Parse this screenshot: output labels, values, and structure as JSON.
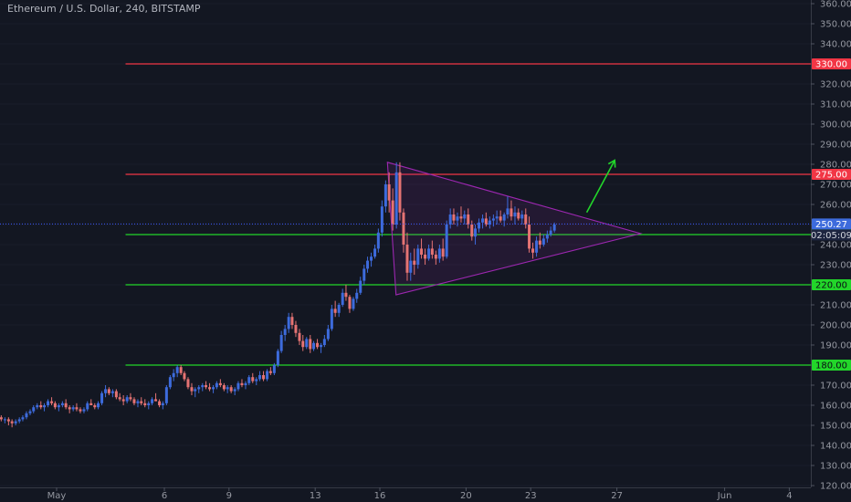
{
  "header": {
    "title": "Ethereum / U.S. Dollar, 240, BITSTAMP"
  },
  "colors": {
    "background": "#131722",
    "up": "#3d6bdc",
    "down": "#e57373",
    "resistance": "#f23645",
    "support": "#22d62a",
    "triangle": "#9c27b0",
    "arrow": "#22d62a",
    "price_line": "#3d5afe",
    "countdown_bg": "#1e2540"
  },
  "chart_data": {
    "type": "candlestick",
    "y_axis": {
      "min": 120,
      "max": 360,
      "ticks": [
        "120.00",
        "130.00",
        "140.00",
        "150.00",
        "160.00",
        "170.00",
        "180.00",
        "190.00",
        "200.00",
        "210.00",
        "220.00",
        "230.00",
        "240.00",
        "250.00",
        "260.00",
        "270.00",
        "280.00",
        "290.00",
        "300.00",
        "310.00",
        "320.00",
        "330.00",
        "340.00",
        "350.00",
        "360.00"
      ]
    },
    "x_axis": {
      "labels": [
        {
          "text": "May",
          "day": 1
        },
        {
          "text": "6",
          "day": 6
        },
        {
          "text": "9",
          "day": 9
        },
        {
          "text": "13",
          "day": 13
        },
        {
          "text": "16",
          "day": 16
        },
        {
          "text": "20",
          "day": 20
        },
        {
          "text": "23",
          "day": 23
        },
        {
          "text": "27",
          "day": 27
        },
        {
          "text": "Jun",
          "day": 32
        },
        {
          "text": "4",
          "day": 35
        }
      ]
    },
    "horizontal_levels": [
      {
        "price": 330,
        "label": "330.00",
        "kind": "resistance",
        "start_day": 4.2
      },
      {
        "price": 275,
        "label": "275.00",
        "kind": "resistance",
        "start_day": 4.2
      },
      {
        "price": 245,
        "label": "245.00",
        "kind": "support",
        "start_day": 4.2
      },
      {
        "price": 220,
        "label": "220.00",
        "kind": "support",
        "start_day": 4.2
      },
      {
        "price": 180,
        "label": "180.00",
        "kind": "support",
        "start_day": 4.2
      }
    ],
    "last_price": {
      "label": "250.27",
      "value": 250.27,
      "countdown": "02:05:09"
    },
    "triangle": [
      {
        "day": 16.35,
        "price": 281
      },
      {
        "day": 16.75,
        "price": 215
      },
      {
        "day": 28.1,
        "price": 245.5
      }
    ],
    "arrow": {
      "from": {
        "day": 25.6,
        "price": 256
      },
      "to": {
        "day": 26.9,
        "price": 282
      }
    },
    "candles": [
      [
        -1.9,
        154,
        155,
        153,
        155
      ],
      [
        -1.73,
        155,
        155,
        153,
        154
      ],
      [
        -1.57,
        154,
        155,
        152,
        153
      ],
      [
        -1.4,
        153,
        154,
        151,
        153
      ],
      [
        -1.23,
        153,
        154,
        150,
        152
      ],
      [
        -1.07,
        152,
        153,
        149,
        151
      ],
      [
        -0.9,
        151,
        153,
        150,
        152
      ],
      [
        -0.73,
        152,
        154,
        151,
        153
      ],
      [
        -0.57,
        153,
        155,
        152,
        154
      ],
      [
        -0.4,
        154,
        157,
        153,
        156
      ],
      [
        -0.23,
        156,
        158,
        155,
        157
      ],
      [
        -0.07,
        157,
        160,
        156,
        159
      ],
      [
        0.1,
        159,
        161,
        158,
        160
      ],
      [
        0.27,
        160,
        162,
        158,
        159
      ],
      [
        0.43,
        159,
        161,
        157,
        160
      ],
      [
        0.6,
        160,
        163,
        159,
        162
      ],
      [
        0.77,
        162,
        164,
        160,
        161
      ],
      [
        0.93,
        161,
        162,
        158,
        159
      ],
      [
        1.1,
        159,
        161,
        157,
        160
      ],
      [
        1.27,
        160,
        162,
        159,
        161
      ],
      [
        1.43,
        161,
        163,
        158,
        159
      ],
      [
        1.6,
        159,
        160,
        156,
        158
      ],
      [
        1.77,
        158,
        160,
        157,
        159
      ],
      [
        1.93,
        159,
        161,
        157,
        158
      ],
      [
        2.1,
        158,
        159,
        156,
        157
      ],
      [
        2.27,
        157,
        159,
        156,
        158
      ],
      [
        2.43,
        158,
        162,
        157,
        161
      ],
      [
        2.6,
        161,
        163,
        160,
        160
      ],
      [
        2.77,
        160,
        161,
        158,
        159
      ],
      [
        2.93,
        159,
        162,
        158,
        161
      ],
      [
        3.1,
        161,
        167,
        160,
        166
      ],
      [
        3.27,
        166,
        170,
        164,
        168
      ],
      [
        3.43,
        168,
        169,
        165,
        166
      ],
      [
        3.6,
        166,
        168,
        164,
        167
      ],
      [
        3.77,
        167,
        168,
        163,
        164
      ],
      [
        3.93,
        164,
        166,
        162,
        163
      ],
      [
        4.1,
        163,
        165,
        160,
        162
      ],
      [
        4.27,
        162,
        165,
        161,
        164
      ],
      [
        4.43,
        164,
        166,
        162,
        163
      ],
      [
        4.6,
        163,
        164,
        160,
        161
      ],
      [
        4.77,
        161,
        163,
        159,
        162
      ],
      [
        4.93,
        162,
        164,
        160,
        161
      ],
      [
        5.1,
        161,
        163,
        159,
        160
      ],
      [
        5.27,
        160,
        162,
        158,
        161
      ],
      [
        5.43,
        161,
        164,
        160,
        163
      ],
      [
        5.6,
        163,
        166,
        162,
        162
      ],
      [
        5.77,
        162,
        163,
        159,
        160
      ],
      [
        5.93,
        160,
        162,
        158,
        161
      ],
      [
        6.1,
        161,
        170,
        160,
        169
      ],
      [
        6.27,
        169,
        175,
        168,
        174
      ],
      [
        6.43,
        174,
        178,
        172,
        176
      ],
      [
        6.6,
        176,
        180,
        174,
        179
      ],
      [
        6.77,
        179,
        180,
        175,
        176
      ],
      [
        6.93,
        176,
        177,
        172,
        173
      ],
      [
        7.1,
        173,
        174,
        168,
        169
      ],
      [
        7.27,
        169,
        171,
        165,
        167
      ],
      [
        7.43,
        167,
        169,
        164,
        168
      ],
      [
        7.6,
        168,
        170,
        166,
        169
      ],
      [
        7.77,
        169,
        171,
        167,
        170
      ],
      [
        7.93,
        170,
        172,
        168,
        169
      ],
      [
        8.1,
        169,
        171,
        167,
        168
      ],
      [
        8.27,
        168,
        170,
        166,
        169
      ],
      [
        8.43,
        169,
        172,
        168,
        171
      ],
      [
        8.6,
        171,
        173,
        169,
        170
      ],
      [
        8.77,
        170,
        171,
        167,
        168
      ],
      [
        8.93,
        168,
        170,
        166,
        169
      ],
      [
        9.1,
        169,
        170,
        166,
        167
      ],
      [
        9.27,
        167,
        169,
        165,
        168
      ],
      [
        9.43,
        168,
        172,
        167,
        171
      ],
      [
        9.6,
        171,
        173,
        169,
        170
      ],
      [
        9.77,
        170,
        172,
        168,
        171
      ],
      [
        9.93,
        171,
        175,
        170,
        174
      ],
      [
        10.1,
        174,
        176,
        171,
        172
      ],
      [
        10.27,
        172,
        174,
        170,
        173
      ],
      [
        10.43,
        173,
        177,
        172,
        175
      ],
      [
        10.6,
        175,
        177,
        172,
        173
      ],
      [
        10.77,
        173,
        178,
        172,
        177
      ],
      [
        10.93,
        177,
        179,
        175,
        176
      ],
      [
        11.1,
        176,
        181,
        175,
        180
      ],
      [
        11.27,
        180,
        188,
        179,
        187
      ],
      [
        11.43,
        187,
        197,
        186,
        195
      ],
      [
        11.6,
        195,
        200,
        192,
        198
      ],
      [
        11.77,
        198,
        206,
        196,
        204
      ],
      [
        11.93,
        204,
        206,
        198,
        200
      ],
      [
        12.1,
        200,
        202,
        194,
        196
      ],
      [
        12.27,
        196,
        198,
        190,
        192
      ],
      [
        12.43,
        192,
        195,
        187,
        189
      ],
      [
        12.6,
        189,
        194,
        188,
        193
      ],
      [
        12.77,
        193,
        195,
        186,
        188
      ],
      [
        12.93,
        188,
        192,
        187,
        191
      ],
      [
        13.1,
        191,
        193,
        188,
        189
      ],
      [
        13.27,
        189,
        191,
        186,
        190
      ],
      [
        13.43,
        190,
        195,
        189,
        193
      ],
      [
        13.6,
        193,
        200,
        192,
        198
      ],
      [
        13.77,
        198,
        210,
        197,
        208
      ],
      [
        13.93,
        208,
        212,
        204,
        206
      ],
      [
        14.1,
        206,
        211,
        204,
        210
      ],
      [
        14.27,
        210,
        218,
        209,
        216
      ],
      [
        14.43,
        216,
        220,
        212,
        214
      ],
      [
        14.6,
        214,
        215,
        206,
        208
      ],
      [
        14.77,
        208,
        214,
        207,
        213
      ],
      [
        14.93,
        213,
        218,
        211,
        216
      ],
      [
        15.1,
        216,
        224,
        215,
        222
      ],
      [
        15.27,
        222,
        230,
        220,
        228
      ],
      [
        15.43,
        228,
        234,
        226,
        232
      ],
      [
        15.6,
        232,
        236,
        229,
        234
      ],
      [
        15.77,
        234,
        240,
        233,
        238
      ],
      [
        15.93,
        238,
        248,
        236,
        246
      ],
      [
        16.1,
        246,
        262,
        244,
        259
      ],
      [
        16.27,
        259,
        272,
        256,
        270
      ],
      [
        16.43,
        270,
        276,
        256,
        262
      ],
      [
        16.6,
        262,
        268,
        247,
        250
      ],
      [
        16.77,
        250,
        281,
        248,
        276
      ],
      [
        16.93,
        276,
        281,
        252,
        256
      ],
      [
        17.1,
        256,
        258,
        236,
        240
      ],
      [
        17.27,
        240,
        246,
        222,
        226
      ],
      [
        17.43,
        226,
        236,
        222,
        232
      ],
      [
        17.6,
        232,
        238,
        225,
        230
      ],
      [
        17.77,
        230,
        240,
        228,
        238
      ],
      [
        17.93,
        238,
        243,
        233,
        235
      ],
      [
        18.1,
        235,
        238,
        230,
        233
      ],
      [
        18.27,
        233,
        240,
        232,
        238
      ],
      [
        18.43,
        238,
        242,
        233,
        235
      ],
      [
        18.6,
        235,
        237,
        230,
        233
      ],
      [
        18.77,
        233,
        240,
        231,
        238
      ],
      [
        18.93,
        238,
        243,
        232,
        234
      ],
      [
        19.1,
        234,
        252,
        233,
        250
      ],
      [
        19.27,
        250,
        258,
        248,
        255
      ],
      [
        19.43,
        255,
        258,
        250,
        252
      ],
      [
        19.6,
        252,
        256,
        249,
        254
      ],
      [
        19.77,
        254,
        259,
        251,
        253
      ],
      [
        19.93,
        253,
        257,
        250,
        255
      ],
      [
        20.1,
        255,
        258,
        248,
        250
      ],
      [
        20.27,
        250,
        252,
        242,
        244
      ],
      [
        20.43,
        244,
        250,
        240,
        248
      ],
      [
        20.6,
        248,
        253,
        246,
        251
      ],
      [
        20.77,
        251,
        255,
        248,
        253
      ],
      [
        20.93,
        253,
        256,
        249,
        250
      ],
      [
        21.1,
        250,
        254,
        248,
        252
      ],
      [
        21.27,
        252,
        255,
        249,
        253
      ],
      [
        21.43,
        253,
        257,
        250,
        254
      ],
      [
        21.6,
        254,
        257,
        251,
        252
      ],
      [
        21.77,
        252,
        256,
        249,
        255
      ],
      [
        21.93,
        255,
        264,
        253,
        258
      ],
      [
        22.1,
        258,
        262,
        252,
        254
      ],
      [
        22.27,
        254,
        259,
        250,
        256
      ],
      [
        22.43,
        256,
        258,
        252,
        253
      ],
      [
        22.6,
        253,
        257,
        250,
        255
      ],
      [
        22.77,
        255,
        258,
        248,
        250
      ],
      [
        22.93,
        250,
        254,
        236,
        238
      ],
      [
        23.1,
        238,
        241,
        233,
        236
      ],
      [
        23.27,
        236,
        244,
        234,
        242
      ],
      [
        23.43,
        242,
        246,
        238,
        240
      ],
      [
        23.6,
        240,
        245,
        239,
        243
      ],
      [
        23.77,
        243,
        247,
        241,
        245
      ],
      [
        23.93,
        245,
        249,
        244,
        247
      ],
      [
        24.1,
        247,
        251,
        246,
        250
      ]
    ]
  }
}
